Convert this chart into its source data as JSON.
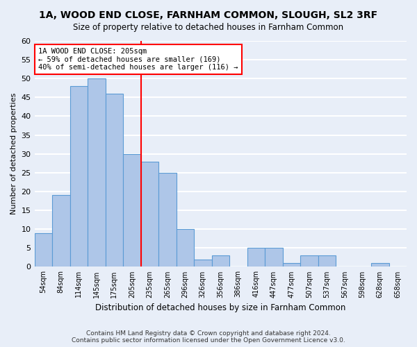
{
  "title": "1A, WOOD END CLOSE, FARNHAM COMMON, SLOUGH, SL2 3RF",
  "subtitle": "Size of property relative to detached houses in Farnham Common",
  "xlabel": "Distribution of detached houses by size in Farnham Common",
  "ylabel": "Number of detached properties",
  "categories": [
    "54sqm",
    "84sqm",
    "114sqm",
    "145sqm",
    "175sqm",
    "205sqm",
    "235sqm",
    "265sqm",
    "296sqm",
    "326sqm",
    "356sqm",
    "386sqm",
    "416sqm",
    "447sqm",
    "477sqm",
    "507sqm",
    "537sqm",
    "567sqm",
    "598sqm",
    "628sqm",
    "658sqm"
  ],
  "values": [
    9,
    19,
    48,
    50,
    46,
    30,
    28,
    25,
    10,
    2,
    3,
    0,
    5,
    5,
    1,
    3,
    3,
    0,
    0,
    1,
    0
  ],
  "bar_color": "#aec6e8",
  "bar_edge_color": "#5b9bd5",
  "highlight_label": "1A WOOD END CLOSE: 205sqm",
  "annotation_line1": "← 59% of detached houses are smaller (169)",
  "annotation_line2": "40% of semi-detached houses are larger (116) →",
  "red_line_index": 5,
  "ylim": [
    0,
    60
  ],
  "yticks": [
    0,
    5,
    10,
    15,
    20,
    25,
    30,
    35,
    40,
    45,
    50,
    55,
    60
  ],
  "background_color": "#e8eef8",
  "grid_color": "#ffffff",
  "footer1": "Contains HM Land Registry data © Crown copyright and database right 2024.",
  "footer2": "Contains public sector information licensed under the Open Government Licence v3.0."
}
